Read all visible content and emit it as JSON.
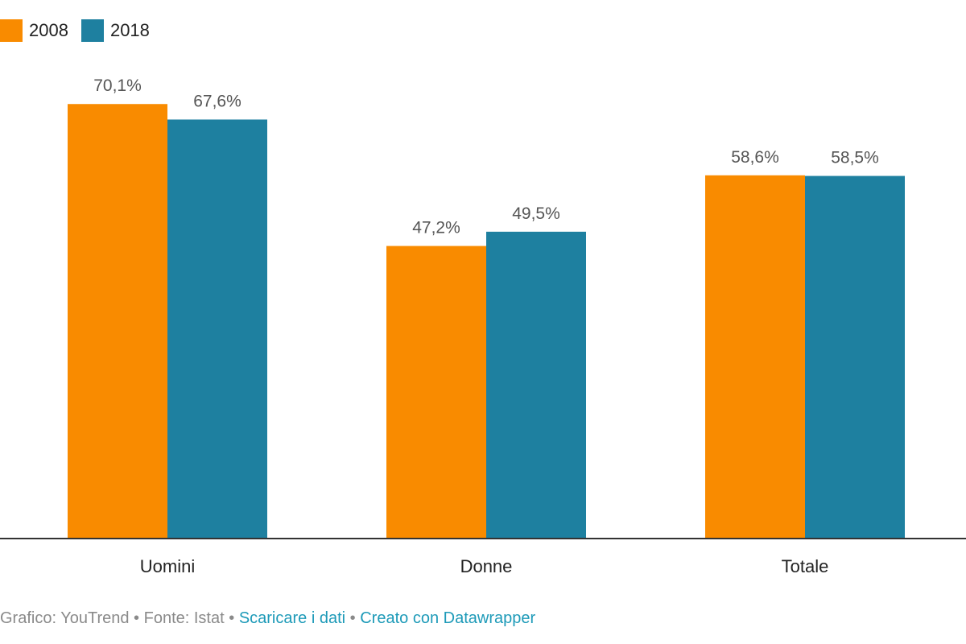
{
  "chart_data": {
    "type": "bar",
    "categories": [
      "Uomini",
      "Donne",
      "Totale"
    ],
    "series": [
      {
        "name": "2008",
        "values": [
          70.1,
          47.2,
          58.6
        ],
        "labels": [
          "70,1%",
          "47,2%",
          "58,6%"
        ],
        "color": "#f98b00"
      },
      {
        "name": "2018",
        "values": [
          67.6,
          49.5,
          58.5
        ],
        "labels": [
          "67,6%",
          "49,5%",
          "58,5%"
        ],
        "color": "#1e80a0"
      }
    ],
    "title": "",
    "xlabel": "",
    "ylabel": "",
    "ylim": [
      0,
      75
    ],
    "grid": false,
    "legend": "top-left"
  },
  "footer": {
    "credit": "Grafico: YouTrend",
    "separator": "•",
    "source": "Fonte: Istat",
    "download_link": "Scaricare i dati",
    "created_link": "Creato con Datawrapper"
  }
}
